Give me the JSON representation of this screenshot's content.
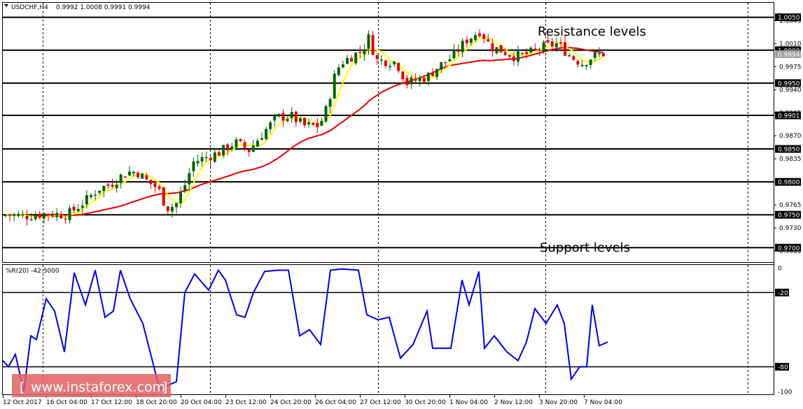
{
  "chart_data": [
    {
      "type": "candlestick",
      "header": {
        "symbol": "USDCHF,H4",
        "ohlc": "0.9992 1.0008 0.9991 0.9994"
      },
      "ylim": [
        0.9678,
        1.0072
      ],
      "price_ticks": [
        "1.0045",
        "1.0010",
        "0.9975",
        "0.9940",
        "0.9905",
        "0.9870",
        "0.9835",
        "0.9765",
        "0.9730",
        "0.9695"
      ],
      "level_labels": [
        "1.0050",
        "1.0000",
        "0.9994",
        "0.9950",
        "0.9901",
        "0.9850",
        "0.9800",
        "0.9750",
        "0.9700"
      ],
      "levels": [
        1.005,
        1.0,
        0.995,
        0.9901,
        0.985,
        0.98,
        0.975,
        0.97
      ],
      "current_price": 0.9994,
      "annotations": {
        "resistance": "Resistance levels",
        "support": "Support levels"
      },
      "series": [
        {
          "name": "fast MA",
          "color": "#ffff00"
        },
        {
          "name": "slow MA",
          "color": "#e00000"
        }
      ],
      "colors": {
        "bull": "#006400",
        "bear": "#e00000",
        "level": "#000000"
      }
    },
    {
      "type": "line",
      "title": "%R(20) -42.5000",
      "ylim": [
        -100,
        0
      ],
      "y_ticks": [
        "0",
        "-20",
        "-80",
        "-100"
      ],
      "levels": [
        -20,
        -80
      ],
      "color": "#0000dd"
    }
  ],
  "time_axis": [
    "12 Oct 2017",
    "16 Oct 04:00",
    "17 Oct 12:00",
    "18 Oct 20:00",
    "20 Oct 04:00",
    "23 Oct 12:00",
    "24 Oct 20:00",
    "26 Oct 04:00",
    "27 Oct 12:00",
    "30 Oct 20:00",
    "1 Nov 04:00",
    "2 Nov 12:00",
    "3 Nov 20:00",
    "7 Nov 04:00"
  ],
  "watermark": {
    "text": "www.instaforex.com",
    "color": "#e06060"
  }
}
